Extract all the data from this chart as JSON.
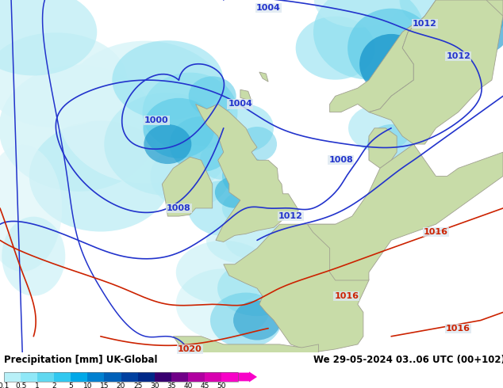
{
  "title_left": "Precipitation [mm] UK-Global",
  "title_right": "We 29-05-2024 03..06 UTC (00+102)",
  "colorbar_labels": [
    "0.1",
    "0.5",
    "1",
    "2",
    "5",
    "10",
    "15",
    "20",
    "25",
    "30",
    "35",
    "40",
    "45",
    "50"
  ],
  "colorbar_colors": [
    "#b8f0f8",
    "#90e8f8",
    "#60d8f0",
    "#30c8f0",
    "#00a8e8",
    "#0080d0",
    "#0060b8",
    "#0040a0",
    "#002888",
    "#380070",
    "#700088",
    "#b000a0",
    "#d800b0",
    "#f800c8"
  ],
  "sea_color": "#dce8f0",
  "land_color": "#c8dca8",
  "land_outline": "#a0a090",
  "blue_isobar": "#2233cc",
  "red_isobar": "#cc2200",
  "prec_very_light": "#d8f4f8",
  "prec_light1": "#b8ecf4",
  "prec_light2": "#90e0f0",
  "prec_mid1": "#60cce8",
  "prec_mid2": "#30b0d8",
  "prec_dark1": "#1090c8",
  "prec_dark2": "#0068a8",
  "prec_dark3": "#0048888"
}
